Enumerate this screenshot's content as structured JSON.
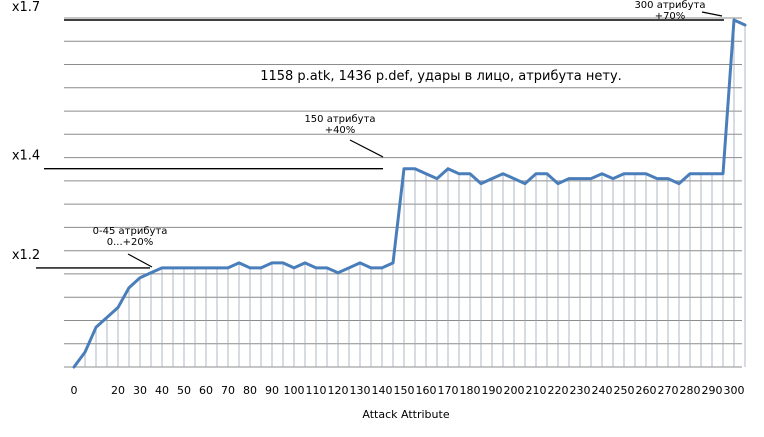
{
  "chart_data": {
    "type": "line",
    "title": "1158 p.atk, 1436 p.def, удары в лицо, атрибута нету.",
    "xlabel": "Attack Attribute",
    "ylabel": "",
    "xlim": [
      0,
      305
    ],
    "ylim": [
      1.0,
      1.7
    ],
    "grid": "horizontal lines and vertical drop lines to each point",
    "legend": "none",
    "line_color": "#4a7ebb",
    "x_ticks": [
      0,
      20,
      30,
      40,
      50,
      60,
      70,
      80,
      90,
      100,
      110,
      120,
      130,
      140,
      150,
      160,
      170,
      180,
      190,
      200,
      210,
      220,
      230,
      240,
      250,
      260,
      270,
      280,
      290,
      300
    ],
    "x": [
      0,
      5,
      10,
      15,
      20,
      25,
      30,
      35,
      40,
      45,
      50,
      55,
      60,
      65,
      70,
      75,
      80,
      85,
      90,
      95,
      100,
      105,
      110,
      115,
      120,
      125,
      130,
      135,
      140,
      145,
      150,
      155,
      160,
      165,
      170,
      175,
      180,
      185,
      190,
      195,
      200,
      205,
      210,
      215,
      220,
      225,
      230,
      235,
      240,
      245,
      250,
      255,
      260,
      265,
      270,
      275,
      280,
      285,
      290,
      295,
      300,
      305
    ],
    "values": [
      1.0,
      1.03,
      1.08,
      1.1,
      1.12,
      1.16,
      1.18,
      1.19,
      1.2,
      1.2,
      1.2,
      1.2,
      1.2,
      1.2,
      1.2,
      1.21,
      1.2,
      1.2,
      1.21,
      1.21,
      1.2,
      1.21,
      1.2,
      1.2,
      1.19,
      1.2,
      1.21,
      1.2,
      1.2,
      1.21,
      1.4,
      1.4,
      1.39,
      1.38,
      1.4,
      1.39,
      1.39,
      1.37,
      1.38,
      1.39,
      1.38,
      1.37,
      1.39,
      1.39,
      1.37,
      1.38,
      1.38,
      1.38,
      1.39,
      1.38,
      1.39,
      1.39,
      1.39,
      1.38,
      1.38,
      1.37,
      1.39,
      1.39,
      1.39,
      1.39,
      1.7,
      1.69
    ],
    "markers": [
      {
        "label": "x1.7",
        "y": 1.7
      },
      {
        "label": "x1.4",
        "y": 1.4
      },
      {
        "label": "x1.2",
        "y": 1.2
      }
    ],
    "annotations": [
      {
        "lines": [
          "0-45 атрибута",
          "0...+20%"
        ],
        "x": 45,
        "y": 1.2
      },
      {
        "lines": [
          "150 атрибута",
          "+40%"
        ],
        "x": 150,
        "y": 1.4
      },
      {
        "lines": [
          "300 атрибута",
          "+70%"
        ],
        "x": 300,
        "y": 1.7
      }
    ]
  }
}
